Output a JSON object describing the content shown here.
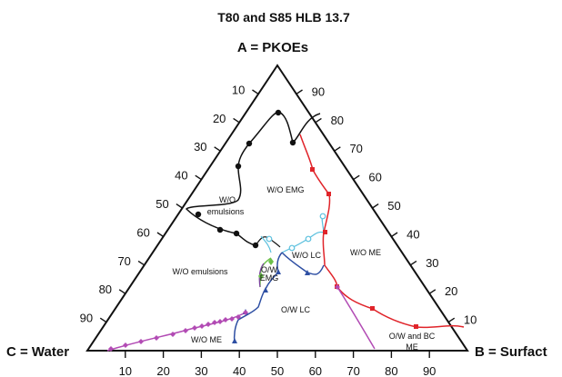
{
  "title": "T80 and S85 HLB 13.7",
  "corners": {
    "top": "A = PKOEs",
    "left": "C = Water",
    "right": "B = Surfact"
  },
  "ticks": {
    "left_side": [
      "10",
      "20",
      "30",
      "40",
      "50",
      "60",
      "70",
      "80",
      "90"
    ],
    "right_side": [
      "90",
      "80",
      "70",
      "60",
      "50",
      "40",
      "30",
      "20",
      "10"
    ],
    "bottom": [
      "10",
      "20",
      "30",
      "40",
      "50",
      "60",
      "70",
      "80",
      "90"
    ]
  },
  "regions": {
    "wo_emulsions_upper_1": "W/O",
    "wo_emulsions_upper_2": "emulsions",
    "wo_emg": "W/O EMG",
    "wo_emulsions_lower": "W/O emulsions",
    "ow_emg_1": "O/W",
    "ow_emg_2": "EMG",
    "wo_lc": "W/O LC",
    "wo_me_right": "W/O ME",
    "ow_lc": "O/W LC",
    "wo_me_bottom": "W/O ME",
    "ow_bc_me_1": "O/W and BC",
    "ow_bc_me_2": "ME"
  },
  "colors": {
    "black": "#111111",
    "red": "#e0242a",
    "cyan": "#5bc0de",
    "blue": "#2e4fa3",
    "green": "#6cc04a",
    "magenta": "#b24bb4",
    "purple": "#7a3fa0"
  }
}
